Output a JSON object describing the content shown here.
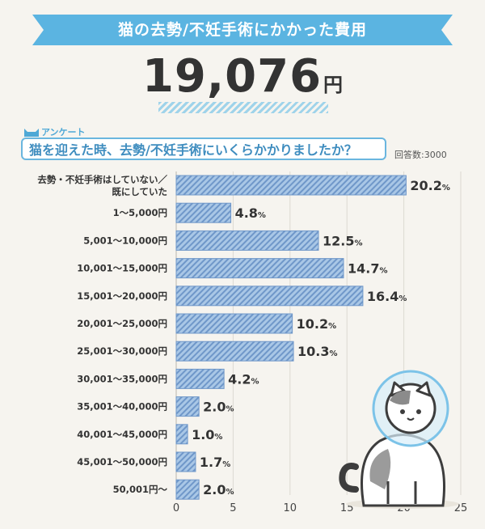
{
  "header": {
    "title": "猫の去勢/不妊手術にかかった費用",
    "total_value": "19,076",
    "total_unit": "円"
  },
  "survey": {
    "tag": "アンケート",
    "question": "猫を迎えた時、去勢/不妊手術にいくらかかりましたか？",
    "respondents": "回答数:3000"
  },
  "colors": {
    "banner": "#5bb4e1",
    "bar_fill": "#a9c7e6",
    "bar_stripe": "#6f97c9",
    "question_border": "#6ab6df"
  },
  "chart_data": {
    "type": "bar",
    "orientation": "horizontal",
    "categories": [
      [
        "去勢・不妊手術はしていない／",
        "既にしていた"
      ],
      [
        "1～5,000円"
      ],
      [
        "5,001～10,000円"
      ],
      [
        "10,001～15,000円"
      ],
      [
        "15,001～20,000円"
      ],
      [
        "20,001～25,000円"
      ],
      [
        "25,001～30,000円"
      ],
      [
        "30,001～35,000円"
      ],
      [
        "35,001～40,000円"
      ],
      [
        "40,001～45,000円"
      ],
      [
        "45,001～50,000円"
      ],
      [
        "50,001円～"
      ]
    ],
    "values": [
      20.2,
      4.8,
      12.5,
      14.7,
      16.4,
      10.2,
      10.3,
      4.2,
      2.0,
      1.0,
      1.7,
      2.0
    ],
    "value_labels": [
      "20.2",
      "4.8",
      "12.5",
      "14.7",
      "16.4",
      "10.2",
      "10.3",
      "4.2",
      "2.0",
      "1.0",
      "1.7",
      "2.0"
    ],
    "unit": "%",
    "xlim": [
      0,
      25
    ],
    "xticks": [
      0,
      5,
      10,
      15,
      20,
      25
    ],
    "grid": true
  }
}
